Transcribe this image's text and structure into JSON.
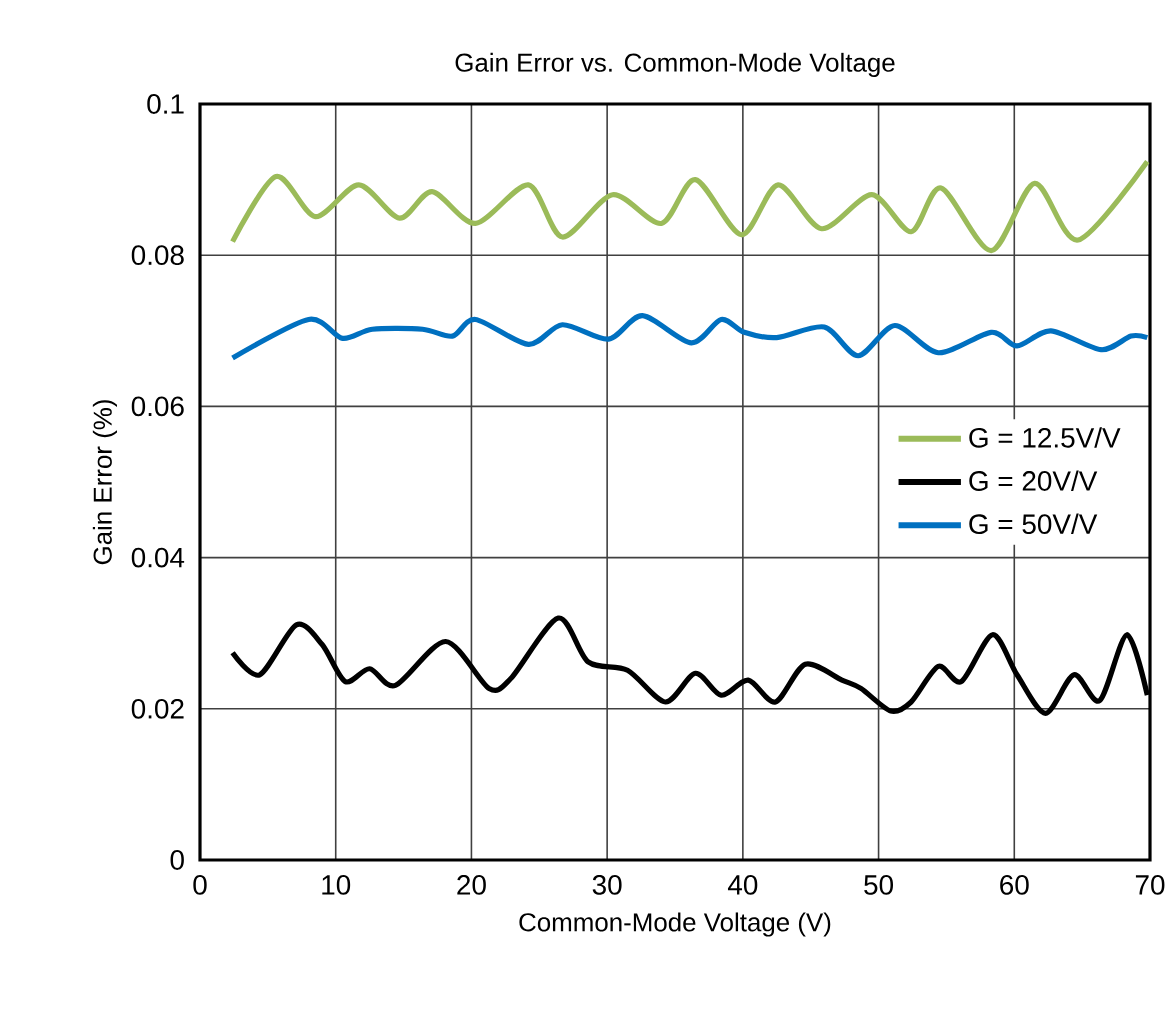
{
  "chart_data": {
    "type": "line",
    "title": "Gain Error vs. Common-Mode Voltage",
    "xlabel": "Common-Mode Voltage (V)",
    "ylabel": "Gain Error (%)",
    "xlim": [
      0,
      70
    ],
    "ylim": [
      0,
      0.1
    ],
    "xticks": [
      0,
      10,
      20,
      30,
      40,
      50,
      60,
      70
    ],
    "yticks": [
      0,
      0.02,
      0.04,
      0.06,
      0.08,
      0.1
    ],
    "grid": true,
    "legend": "right",
    "marker": "none",
    "line_style": "solid",
    "series": [
      {
        "name": "G = 12.5V/V",
        "color": "#9bbb59",
        "x": [
          2.4,
          5.6,
          8.5,
          11.7,
          14.7,
          17.1,
          20.3,
          24.2,
          26.7,
          30.4,
          34.0,
          36.5,
          39.9,
          42.6,
          45.8,
          49.5,
          52.4,
          54.6,
          58.3,
          61.5,
          64.7,
          69.8
        ],
        "values": [
          0.0818,
          0.0904,
          0.0851,
          0.0893,
          0.0849,
          0.0884,
          0.0842,
          0.0893,
          0.0824,
          0.088,
          0.0842,
          0.09,
          0.0827,
          0.0893,
          0.0835,
          0.088,
          0.0831,
          0.0889,
          0.0806,
          0.0895,
          0.082,
          0.0924
        ]
      },
      {
        "name": "G = 20V/V",
        "color": "#000000",
        "x": [
          2.4,
          4.4,
          7.1,
          9.0,
          10.7,
          12.5,
          14.4,
          18.1,
          21.3,
          22.9,
          26.4,
          28.6,
          31.5,
          34.3,
          36.5,
          38.4,
          40.4,
          42.4,
          44.6,
          47.3,
          48.7,
          50.9,
          52.4,
          54.4,
          56.1,
          58.4,
          60.2,
          62.3,
          64.4,
          66.3,
          68.3,
          69.8
        ],
        "values": [
          0.0274,
          0.0245,
          0.0311,
          0.0285,
          0.0236,
          0.0253,
          0.0231,
          0.0289,
          0.0227,
          0.024,
          0.032,
          0.0262,
          0.0251,
          0.0209,
          0.0247,
          0.0218,
          0.0238,
          0.0209,
          0.0259,
          0.0238,
          0.0227,
          0.0197,
          0.0209,
          0.0256,
          0.0236,
          0.0298,
          0.0245,
          0.0194,
          0.0245,
          0.0211,
          0.0298,
          0.0218
        ]
      },
      {
        "name": "G = 50V/V",
        "color": "#0070c0",
        "x": [
          2.4,
          8.0,
          10.5,
          12.7,
          16.4,
          18.6,
          20.3,
          24.2,
          26.7,
          30.1,
          32.6,
          36.2,
          38.4,
          40.1,
          42.5,
          46.0,
          48.5,
          51.2,
          54.4,
          58.3,
          60.2,
          62.7,
          66.4,
          68.6,
          69.8
        ],
        "values": [
          0.0664,
          0.0715,
          0.069,
          0.0702,
          0.0702,
          0.0693,
          0.0715,
          0.0682,
          0.0708,
          0.0689,
          0.072,
          0.0684,
          0.0715,
          0.0698,
          0.0691,
          0.0705,
          0.0667,
          0.0707,
          0.0671,
          0.0698,
          0.068,
          0.07,
          0.0675,
          0.0693,
          0.0691
        ]
      }
    ]
  }
}
